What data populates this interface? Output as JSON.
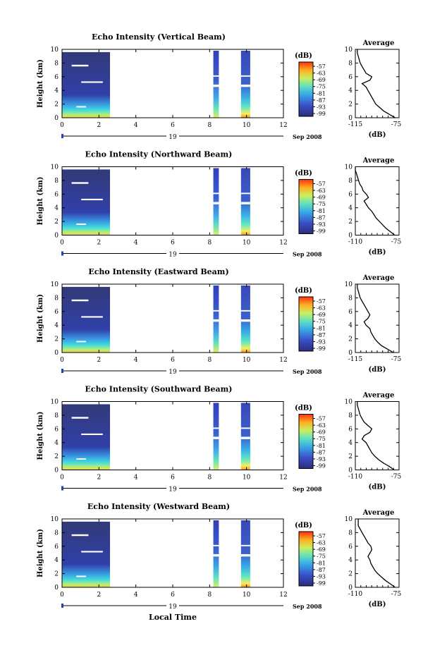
{
  "figure": {
    "xlabel_bottom": "Local Time",
    "date_label": "Sep 2008",
    "day_label": "19"
  },
  "chart_data": [
    {
      "type": "heatmap",
      "title": "Echo Intensity (Vertical Beam)",
      "ylabel": "Height (km)",
      "xlim": [
        0,
        12
      ],
      "ylim": [
        0,
        10
      ],
      "xticks": [
        "0",
        "2",
        "4",
        "6",
        "8",
        "10",
        "12"
      ],
      "yticks": [
        "0",
        "2",
        "4",
        "6",
        "8",
        "10"
      ],
      "data_blocks_hours": [
        [
          0,
          2.6
        ],
        [
          8.2,
          8.5
        ],
        [
          9.7,
          10.2
        ]
      ],
      "colorbar": {
        "label": "(dB)",
        "ticks": [
          "-57",
          "-63",
          "-69",
          "-75",
          "-81",
          "-87",
          "-93",
          "-99"
        ]
      },
      "profile": {
        "type": "line",
        "title": "Average",
        "xlabel": "(dB)",
        "xlim": [
          -115,
          -70
        ],
        "xticks": [
          "-115",
          "-75"
        ],
        "ylim": [
          0,
          10
        ],
        "yticks": [
          "0",
          "2",
          "4",
          "6",
          "8",
          "10"
        ],
        "height_km": [
          0,
          0.5,
          1,
          1.5,
          2,
          2.5,
          3,
          3.5,
          4,
          4.5,
          5,
          5.5,
          6,
          6.5,
          7,
          7.5,
          8,
          8.5,
          9,
          9.5,
          10
        ],
        "db": [
          -74,
          -80,
          -86,
          -90,
          -94,
          -96,
          -98,
          -100,
          -102,
          -104,
          -108,
          -100,
          -98,
          -104,
          -106,
          -108,
          -110,
          -111,
          -112,
          -113,
          -113
        ]
      }
    },
    {
      "type": "heatmap",
      "title": "Echo Intensity (Northward Beam)",
      "ylabel": "Height (km)",
      "xlim": [
        0,
        12
      ],
      "ylim": [
        0,
        10
      ],
      "xticks": [
        "0",
        "2",
        "4",
        "6",
        "8",
        "10",
        "12"
      ],
      "yticks": [
        "0",
        "2",
        "4",
        "6",
        "8",
        "10"
      ],
      "data_blocks_hours": [
        [
          0,
          2.6
        ],
        [
          8.2,
          8.5
        ],
        [
          9.7,
          10.2
        ]
      ],
      "colorbar": {
        "label": "(dB)",
        "ticks": [
          "-57",
          "-63",
          "-69",
          "-75",
          "-81",
          "-87",
          "-93",
          "-99"
        ]
      },
      "profile": {
        "type": "line",
        "title": "Average",
        "xlabel": "(dB)",
        "xlim": [
          -110,
          -70
        ],
        "xticks": [
          "-110",
          "-75"
        ],
        "ylim": [
          0,
          10
        ],
        "yticks": [
          "0",
          "2",
          "4",
          "6",
          "8",
          "10"
        ],
        "height_km": [
          0,
          0.5,
          1,
          1.5,
          2,
          2.5,
          3,
          3.5,
          4,
          4.5,
          5,
          5.5,
          6,
          6.5,
          7,
          7.5,
          8,
          8.5,
          9,
          9.5,
          10
        ],
        "db": [
          -74,
          -78,
          -82,
          -85,
          -88,
          -91,
          -93,
          -95,
          -98,
          -100,
          -102,
          -98,
          -100,
          -103,
          -104,
          -106,
          -107,
          -108,
          -109,
          -110,
          -110
        ]
      }
    },
    {
      "type": "heatmap",
      "title": "Echo Intensity (Eastward Beam)",
      "ylabel": "Height (km)",
      "xlim": [
        0,
        12
      ],
      "ylim": [
        0,
        10
      ],
      "xticks": [
        "0",
        "2",
        "4",
        "6",
        "8",
        "10",
        "12"
      ],
      "yticks": [
        "0",
        "2",
        "4",
        "6",
        "8",
        "10"
      ],
      "data_blocks_hours": [
        [
          0,
          2.6
        ],
        [
          8.2,
          8.5
        ],
        [
          9.7,
          10.2
        ]
      ],
      "colorbar": {
        "label": "(dB)",
        "ticks": [
          "-57",
          "-63",
          "-69",
          "-75",
          "-81",
          "-87",
          "-93",
          "-99"
        ]
      },
      "profile": {
        "type": "line",
        "title": "Average",
        "xlabel": "(dB)",
        "xlim": [
          -115,
          -70
        ],
        "xticks": [
          "-115",
          "-75"
        ],
        "ylim": [
          0,
          10
        ],
        "yticks": [
          "0",
          "2",
          "4",
          "6",
          "8",
          "10"
        ],
        "height_km": [
          0,
          0.5,
          1,
          1.5,
          2,
          2.5,
          3,
          3.5,
          4,
          4.5,
          5,
          5.5,
          6,
          6.5,
          7,
          7.5,
          8,
          8.5,
          9,
          9.5,
          10
        ],
        "db": [
          -76,
          -82,
          -88,
          -92,
          -95,
          -97,
          -99,
          -100,
          -104,
          -106,
          -102,
          -100,
          -102,
          -104,
          -106,
          -108,
          -110,
          -111,
          -112,
          -113,
          -113
        ]
      }
    },
    {
      "type": "heatmap",
      "title": "Echo Intensity (Southward Beam)",
      "ylabel": "Height (km)",
      "xlim": [
        0,
        12
      ],
      "ylim": [
        0,
        10
      ],
      "xticks": [
        "0",
        "2",
        "4",
        "6",
        "8",
        "10",
        "12"
      ],
      "yticks": [
        "0",
        "2",
        "4",
        "6",
        "8",
        "10"
      ],
      "data_blocks_hours": [
        [
          0,
          2.6
        ],
        [
          8.2,
          8.5
        ],
        [
          9.7,
          10.2
        ]
      ],
      "colorbar": {
        "label": "(dB)",
        "ticks": [
          "-57",
          "-63",
          "-69",
          "-75",
          "-81",
          "-87",
          "-93",
          "-99"
        ]
      },
      "profile": {
        "type": "line",
        "title": "Average",
        "xlabel": "(dB)",
        "xlim": [
          -115,
          -70
        ],
        "xticks": [
          "-110",
          "-75"
        ],
        "ylim": [
          0,
          10
        ],
        "yticks": [
          "0",
          "2",
          "4",
          "6",
          "8",
          "10"
        ],
        "height_km": [
          0,
          0.5,
          1,
          1.5,
          2,
          2.5,
          3,
          3.5,
          4,
          4.5,
          5,
          5.5,
          6,
          6.5,
          7,
          7.5,
          8,
          8.5,
          9,
          9.5,
          10
        ],
        "db": [
          -75,
          -80,
          -86,
          -91,
          -95,
          -98,
          -100,
          -102,
          -104,
          -108,
          -106,
          -100,
          -98,
          -102,
          -106,
          -108,
          -110,
          -111,
          -112,
          -113,
          -113
        ]
      }
    },
    {
      "type": "heatmap",
      "title": "Echo Intensity (Westward Beam)",
      "ylabel": "Height (km)",
      "xlim": [
        0,
        12
      ],
      "ylim": [
        0,
        10
      ],
      "xticks": [
        "0",
        "2",
        "4",
        "6",
        "8",
        "10",
        "12"
      ],
      "yticks": [
        "0",
        "2",
        "4",
        "6",
        "8",
        "10"
      ],
      "data_blocks_hours": [
        [
          0,
          2.6
        ],
        [
          8.2,
          8.5
        ],
        [
          9.7,
          10.2
        ]
      ],
      "colorbar": {
        "label": "(dB)",
        "ticks": [
          "-57",
          "-63",
          "-69",
          "-75",
          "-81",
          "-87",
          "-93",
          "-99"
        ]
      },
      "profile": {
        "type": "line",
        "title": "Average",
        "xlabel": "(dB)",
        "xlim": [
          -115,
          -70
        ],
        "xticks": [
          "-110",
          "-75"
        ],
        "ylim": [
          0,
          10
        ],
        "yticks": [
          "0",
          "2",
          "4",
          "6",
          "8",
          "10"
        ],
        "height_km": [
          0,
          0.5,
          1,
          1.5,
          2,
          2.5,
          3,
          3.5,
          4,
          4.5,
          5,
          5.5,
          6,
          6.5,
          7,
          7.5,
          8,
          8.5,
          9,
          9.5,
          10
        ],
        "db": [
          -74,
          -79,
          -84,
          -88,
          -92,
          -95,
          -97,
          -99,
          -100,
          -102,
          -100,
          -98,
          -99,
          -102,
          -104,
          -106,
          -108,
          -110,
          -112,
          -112,
          -112
        ]
      }
    }
  ]
}
